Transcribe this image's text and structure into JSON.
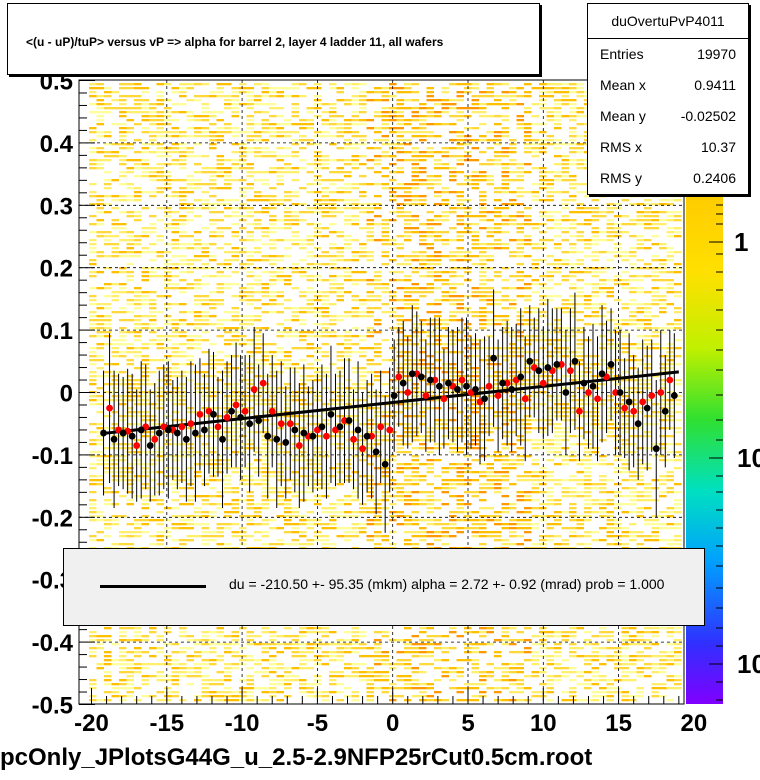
{
  "title": "<(u - uP)/tuP> versus   vP => alpha for barrel 2, layer 4 ladder 11, all wafers",
  "stats": {
    "name": "duOvertuPvP4011",
    "rows": [
      {
        "key": "Entries",
        "value": "19970"
      },
      {
        "key": "Mean x",
        "value": "0.9411"
      },
      {
        "key": "Mean y",
        "value": "-0.02502"
      },
      {
        "key": "RMS x",
        "value": "10.37"
      },
      {
        "key": "RMS y",
        "value": "0.2406"
      }
    ]
  },
  "legend_text": "du = -210.50 +- 95.35 (mkm) alpha =     2.72 +-  0.92 (mrad) prob = 1.000",
  "xlabel": "pcOnly_JPlotsG44G_u_2.5-2.9NFP25rCut0.5cm.root",
  "colors": {
    "red_points": "#ff0000",
    "black_points": "#000000",
    "fit": "#000000",
    "legend_bg": "#f0f0f0"
  },
  "chart_data": {
    "type": "scatter",
    "xlim": [
      -20,
      20
    ],
    "ylim": [
      -0.5,
      0.5
    ],
    "xticks": [
      "-20",
      "-15",
      "-10",
      "-5",
      "0",
      "5",
      "10",
      "15",
      "20"
    ],
    "yticks": [
      "-0.5",
      "-0.4",
      "-0.3",
      "-0.2",
      "-0.1",
      "0",
      "0.1",
      "0.2",
      "0.3",
      "0.4",
      "0.5"
    ],
    "zaxis_labels": [
      "1",
      "10",
      "10"
    ],
    "grid": true,
    "fit_line": {
      "x": [
        -19,
        19
      ],
      "y": [
        -0.065,
        0.033
      ]
    },
    "series": [
      {
        "color": "red",
        "x": [
          -18.8,
          -18.2,
          -17.6,
          -17.0,
          -16.4,
          -15.8,
          -15.2,
          -14.6,
          -14.0,
          -13.4,
          -12.8,
          -12.2,
          -11.6,
          -11.0,
          -10.4,
          -9.8,
          -9.2,
          -8.6,
          -8.0,
          -7.4,
          -6.8,
          -6.2,
          -5.6,
          -5.0,
          -4.4,
          -3.8,
          -3.2,
          -2.6,
          -2.0,
          -1.4,
          -0.8,
          -0.2,
          0.4,
          1.0,
          1.6,
          2.2,
          2.8,
          3.4,
          4.0,
          4.6,
          5.2,
          5.8,
          6.4,
          7.0,
          7.6,
          8.2,
          8.8,
          9.4,
          10.0,
          10.6,
          11.2,
          11.8,
          12.4,
          13.0,
          13.6,
          14.2,
          14.8,
          15.4,
          16.0,
          16.6,
          17.2,
          17.8,
          18.4
        ],
        "y": [
          -0.025,
          -0.06,
          -0.062,
          -0.085,
          -0.055,
          -0.075,
          -0.055,
          -0.06,
          -0.055,
          -0.05,
          -0.035,
          -0.03,
          -0.055,
          -0.04,
          -0.02,
          -0.03,
          0.005,
          0.015,
          -0.03,
          -0.05,
          -0.05,
          -0.085,
          -0.07,
          -0.06,
          -0.07,
          -0.06,
          -0.045,
          -0.075,
          -0.09,
          -0.07,
          -0.055,
          -0.06,
          0.025,
          0.0,
          0.03,
          -0.005,
          0.02,
          -0.01,
          0.01,
          0.02,
          0.0,
          -0.015,
          0.01,
          -0.005,
          0.015,
          0.02,
          -0.01,
          0.04,
          0.015,
          0.035,
          0.045,
          0.035,
          -0.03,
          0.0,
          -0.01,
          0.025,
          0.0,
          -0.025,
          -0.03,
          -0.015,
          -0.005,
          0.0,
          0.02
        ],
        "yerr": [
          0.12,
          0.09,
          0.1,
          0.09,
          0.1,
          0.09,
          0.1,
          0.08,
          0.09,
          0.1,
          0.09,
          0.1,
          0.08,
          0.09,
          0.1,
          0.09,
          0.1,
          0.08,
          0.09,
          0.1,
          0.09,
          0.1,
          0.08,
          0.09,
          0.1,
          0.09,
          0.1,
          0.08,
          0.09,
          0.1,
          0.09,
          0.1,
          0.08,
          0.09,
          0.1,
          0.09,
          0.1,
          0.08,
          0.09,
          0.1,
          0.09,
          0.1,
          0.08,
          0.09,
          0.1,
          0.09,
          0.1,
          0.08,
          0.09,
          0.1,
          0.09,
          0.1,
          0.08,
          0.09,
          0.1,
          0.09,
          0.1,
          0.08,
          0.09,
          0.1,
          0.09,
          0.1,
          0.08
        ]
      },
      {
        "color": "black",
        "x": [
          -19.2,
          -18.5,
          -17.9,
          -17.3,
          -16.7,
          -16.1,
          -15.5,
          -14.9,
          -14.3,
          -13.7,
          -13.1,
          -12.5,
          -11.9,
          -11.3,
          -10.7,
          -10.1,
          -9.5,
          -8.9,
          -8.3,
          -7.7,
          -7.1,
          -6.5,
          -5.9,
          -5.3,
          -4.7,
          -4.1,
          -3.5,
          -2.9,
          -2.3,
          -1.7,
          -1.1,
          -0.5,
          0.1,
          0.7,
          1.3,
          1.9,
          2.5,
          3.1,
          3.7,
          4.3,
          4.9,
          5.5,
          6.1,
          6.7,
          7.3,
          7.9,
          8.5,
          9.1,
          9.7,
          10.3,
          10.9,
          11.5,
          12.1,
          12.7,
          13.3,
          13.9,
          14.5,
          15.1,
          15.7,
          16.3,
          16.9,
          17.5,
          18.1,
          18.7
        ],
        "y": [
          -0.065,
          -0.075,
          -0.065,
          -0.07,
          -0.06,
          -0.085,
          -0.065,
          -0.06,
          -0.065,
          -0.075,
          -0.065,
          -0.06,
          -0.035,
          -0.075,
          -0.03,
          -0.04,
          -0.05,
          -0.045,
          -0.07,
          -0.075,
          -0.08,
          -0.06,
          -0.065,
          -0.07,
          -0.055,
          -0.035,
          -0.055,
          -0.045,
          -0.06,
          -0.07,
          -0.095,
          -0.115,
          -0.005,
          0.015,
          0.03,
          0.025,
          0.02,
          0.01,
          0.015,
          0.005,
          0.01,
          0.005,
          -0.01,
          0.055,
          0.015,
          0.005,
          0.025,
          0.05,
          0.035,
          0.04,
          0.045,
          0.0,
          0.05,
          0.015,
          0.01,
          0.03,
          0.045,
          0.0,
          -0.015,
          -0.05,
          -0.025,
          -0.09,
          -0.03,
          -0.005
        ],
        "yerr": [
          0.1,
          0.11,
          0.09,
          0.1,
          0.11,
          0.09,
          0.1,
          0.11,
          0.09,
          0.1,
          0.11,
          0.09,
          0.1,
          0.11,
          0.09,
          0.1,
          0.11,
          0.09,
          0.1,
          0.11,
          0.09,
          0.1,
          0.11,
          0.09,
          0.1,
          0.11,
          0.09,
          0.1,
          0.11,
          0.09,
          0.1,
          0.11,
          0.09,
          0.1,
          0.11,
          0.09,
          0.1,
          0.11,
          0.09,
          0.1,
          0.11,
          0.09,
          0.1,
          0.11,
          0.09,
          0.1,
          0.11,
          0.09,
          0.1,
          0.11,
          0.09,
          0.1,
          0.11,
          0.09,
          0.1,
          0.11,
          0.09,
          0.1,
          0.11,
          0.09,
          0.1,
          0.11,
          0.09,
          0.1
        ]
      }
    ]
  }
}
